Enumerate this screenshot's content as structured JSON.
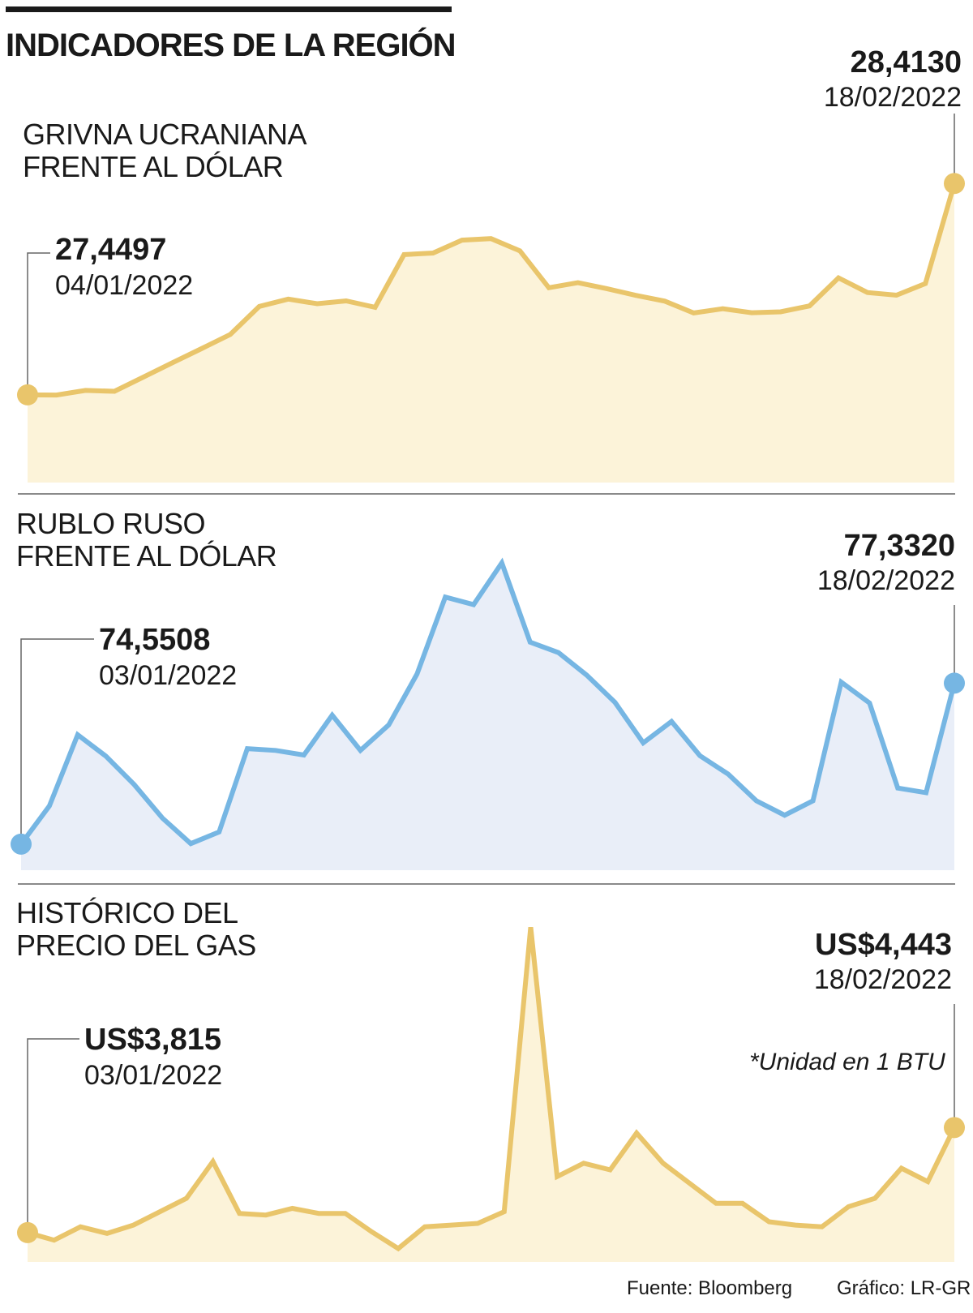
{
  "header": {
    "title": "INDICADORES DE LA REGIÓN"
  },
  "colors": {
    "gold_line": "#e9c56b",
    "gold_fill": "#fcf3d9",
    "blue_line": "#76b6e3",
    "blue_fill": "#e9eef8",
    "text": "#1a1a1a",
    "rule": "#8a8a8a"
  },
  "chart_data": [
    {
      "type": "area",
      "title": "GRIVNA UCRANIANA FRENTE AL DÓLAR",
      "start": {
        "value": "27,4497",
        "date": "04/01/2022"
      },
      "end": {
        "value": "28,4130",
        "date": "18/02/2022"
      },
      "ylim": [
        27.05,
        28.78
      ],
      "values": [
        27.4497,
        27.449,
        27.47,
        27.466,
        27.531,
        27.596,
        27.66,
        27.725,
        27.853,
        27.886,
        27.865,
        27.878,
        27.849,
        28.089,
        28.096,
        28.155,
        28.162,
        28.106,
        27.938,
        27.961,
        27.934,
        27.903,
        27.877,
        27.823,
        27.842,
        27.824,
        27.828,
        27.855,
        27.983,
        27.916,
        27.904,
        27.957,
        28.413
      ]
    },
    {
      "type": "area",
      "title": "RUBLO RUSO FRENTE AL DÓLAR",
      "start": {
        "value": "74,5508",
        "date": "03/01/2022"
      },
      "end": {
        "value": "77,3320",
        "date": "18/02/2022"
      },
      "ylim": [
        74.1,
        80.42
      ],
      "values": [
        74.5508,
        75.21,
        76.44,
        76.07,
        75.58,
        75.0,
        74.56,
        74.76,
        76.2,
        76.17,
        76.09,
        76.78,
        76.17,
        76.61,
        77.49,
        78.82,
        78.69,
        79.41,
        78.04,
        77.86,
        77.47,
        77.0,
        76.3,
        76.67,
        76.08,
        75.76,
        75.3,
        75.05,
        75.3,
        77.35,
        76.99,
        75.52,
        75.44,
        77.332
      ]
    },
    {
      "type": "area",
      "title": "HISTÓRICO DEL PRECIO DEL GAS",
      "start": {
        "value": "US$3,815",
        "date": "03/01/2022"
      },
      "end": {
        "value": "US$4,443",
        "date": "18/02/2022"
      },
      "note": "*Unidad en 1 BTU",
      "ylim": [
        3.64,
        5.85
      ],
      "values": [
        3.815,
        3.77,
        3.85,
        3.81,
        3.86,
        3.94,
        4.02,
        4.24,
        3.93,
        3.92,
        3.96,
        3.93,
        3.93,
        3.82,
        3.72,
        3.85,
        3.86,
        3.87,
        3.94,
        5.64,
        4.15,
        4.23,
        4.19,
        4.41,
        4.23,
        4.11,
        3.99,
        3.99,
        3.88,
        3.86,
        3.85,
        3.97,
        4.02,
        4.2,
        4.12,
        4.443
      ]
    }
  ],
  "footer": {
    "source": "Fuente: Bloomberg",
    "credit": "Gráfico: LR-GR"
  }
}
